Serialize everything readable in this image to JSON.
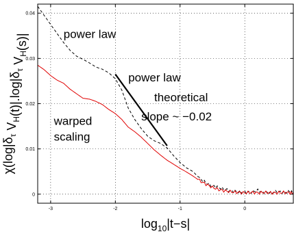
{
  "chart_data": {
    "type": "line",
    "xlabel": {
      "prefix": "log",
      "sub": "10",
      "suffix": "|t−s|"
    },
    "ylabel": {
      "parts": [
        {
          "t": "χ(log|δ",
          "sub": "τ"
        },
        {
          "t": " V",
          "sub": "H"
        },
        {
          "t": "(t)|.log|δ",
          "sub": "τ"
        },
        {
          "t": " V",
          "sub": "H"
        },
        {
          "t": "(s)|",
          "sub": ""
        }
      ]
    },
    "xlim": [
      -3.2,
      0.75
    ],
    "ylim": [
      -0.002,
      0.042
    ],
    "xticks": [
      {
        "v": -3,
        "label": "-3"
      },
      {
        "v": -2,
        "label": "-2"
      },
      {
        "v": -1,
        "label": "-1"
      },
      {
        "v": 0,
        "label": "0"
      }
    ],
    "yticks": [
      {
        "v": 0,
        "label": "0"
      },
      {
        "v": 0.01,
        "label": "0.01"
      },
      {
        "v": 0.02,
        "label": "0.02"
      },
      {
        "v": 0.03,
        "label": "0.03"
      },
      {
        "v": 0.04,
        "label": "0.04"
      }
    ],
    "grid": true,
    "series": [
      {
        "color": "#000000",
        "dash": "dashed",
        "points": [
          [
            -3.2,
            0.0415
          ],
          [
            -3.1,
            0.0395
          ],
          [
            -3.0,
            0.0375
          ],
          [
            -2.9,
            0.0355
          ],
          [
            -2.8,
            0.0335
          ],
          [
            -2.7,
            0.0318
          ],
          [
            -2.6,
            0.0305
          ],
          [
            -2.5,
            0.0298
          ],
          [
            -2.4,
            0.029
          ],
          [
            -2.3,
            0.0281
          ],
          [
            -2.2,
            0.0276
          ],
          [
            -2.1,
            0.0268
          ],
          [
            -2.0,
            0.0255
          ],
          [
            -1.9,
            0.023
          ],
          [
            -1.8,
            0.019
          ],
          [
            -1.7,
            0.0165
          ],
          [
            -1.6,
            0.0145
          ],
          [
            -1.5,
            0.0128
          ],
          [
            -1.4,
            0.0118
          ],
          [
            -1.3,
            0.0112
          ],
          [
            -1.2,
            0.0102
          ],
          [
            -1.1,
            0.0085
          ],
          [
            -1.0,
            0.007
          ],
          [
            -0.9,
            0.0058
          ],
          [
            -0.8,
            0.005
          ],
          [
            -0.7,
            0.0035
          ],
          [
            -0.6,
            0.0025
          ],
          [
            -0.5,
            0.0018
          ],
          [
            -0.4,
            0.0015
          ],
          [
            -0.3,
            0.001
          ],
          [
            -0.2,
            0.0007
          ],
          [
            -0.1,
            0.0005
          ],
          [
            0.0,
            0.0004
          ],
          [
            0.1,
            0.0005
          ],
          [
            0.2,
            0.0008
          ],
          [
            0.3,
            0.0004
          ],
          [
            0.4,
            0.0003
          ],
          [
            0.5,
            0.0006
          ],
          [
            0.6,
            0.0004
          ],
          [
            0.7,
            0.0005
          ],
          [
            0.75,
            0.0004
          ]
        ]
      },
      {
        "color": "#e00000",
        "dash": "solid",
        "points": [
          [
            -3.2,
            0.0285
          ],
          [
            -3.1,
            0.0275
          ],
          [
            -3.0,
            0.0262
          ],
          [
            -2.9,
            0.0252
          ],
          [
            -2.8,
            0.0245
          ],
          [
            -2.7,
            0.0232
          ],
          [
            -2.6,
            0.0222
          ],
          [
            -2.5,
            0.0212
          ],
          [
            -2.4,
            0.021
          ],
          [
            -2.3,
            0.0205
          ],
          [
            -2.2,
            0.0198
          ],
          [
            -2.1,
            0.0187
          ],
          [
            -2.0,
            0.0178
          ],
          [
            -1.9,
            0.0165
          ],
          [
            -1.8,
            0.0148
          ],
          [
            -1.7,
            0.0138
          ],
          [
            -1.6,
            0.0126
          ],
          [
            -1.5,
            0.0112
          ],
          [
            -1.4,
            0.0098
          ],
          [
            -1.3,
            0.0086
          ],
          [
            -1.2,
            0.0075
          ],
          [
            -1.1,
            0.0066
          ],
          [
            -1.0,
            0.0057
          ],
          [
            -0.9,
            0.0049
          ],
          [
            -0.8,
            0.004
          ],
          [
            -0.7,
            0.003
          ],
          [
            -0.6,
            0.0022
          ],
          [
            -0.5,
            0.0015
          ],
          [
            -0.4,
            0.001
          ],
          [
            -0.3,
            0.0007
          ],
          [
            -0.2,
            0.0005
          ],
          [
            -0.1,
            0.0004
          ],
          [
            0.0,
            0.0003
          ],
          [
            0.1,
            0.0004
          ],
          [
            0.2,
            0.0003
          ],
          [
            0.3,
            0.0004
          ],
          [
            0.4,
            0.0003
          ],
          [
            0.5,
            0.0003
          ],
          [
            0.6,
            0.0004
          ],
          [
            0.7,
            0.0003
          ],
          [
            0.75,
            0.0003
          ]
        ]
      }
    ],
    "annotations": [
      {
        "id": "ann-power-law-1",
        "text": "power law",
        "x": -2.8,
        "y": 0.0345
      },
      {
        "id": "ann-power-law-2",
        "text": "power law",
        "x": -1.8,
        "y": 0.0249
      },
      {
        "id": "ann-theoretical",
        "text": "theoretical",
        "x": -1.4,
        "y": 0.0205
      },
      {
        "id": "ann-slope",
        "text": "slope ~ −0.02",
        "x": -1.6,
        "y": 0.0163
      },
      {
        "id": "ann-warped",
        "text": "warped",
        "x": -2.95,
        "y": 0.0153
      },
      {
        "id": "ann-scaling",
        "text": "scaling",
        "x": -2.95,
        "y": 0.0118
      }
    ],
    "reference_line": {
      "x1": -2.0,
      "y1": 0.0265,
      "x2": -1.2,
      "y2": 0.0107
    }
  }
}
